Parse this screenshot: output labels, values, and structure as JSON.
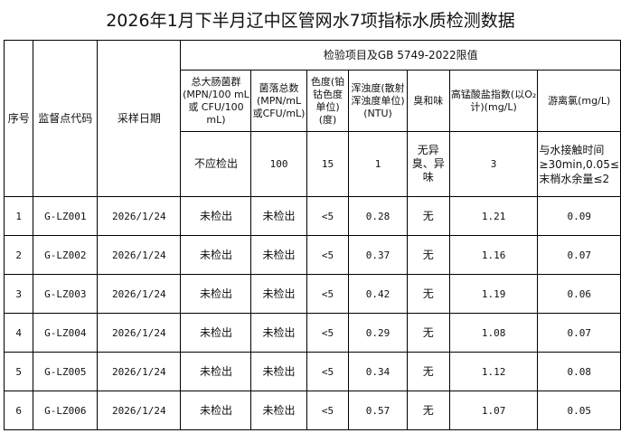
{
  "title": "2026年1月下半月辽中区管网水7项指标水质检测数据",
  "headers": {
    "seq": "序号",
    "code": "监督点代码",
    "date": "采样日期",
    "group": "检验项目及GB 5749-2022限值",
    "items": [
      "总大肠菌群(MPN/100 mL或 CFU/100 mL)",
      "菌落总数(MPN/mL或CFU/mL)",
      "色度(铂钴色度单位)(度)",
      "浑浊度(散射浑浊度单位)(NTU)",
      "臭和味",
      "高锰酸盐指数(以O₂计)(mg/L)",
      "游离氯(mg/L)"
    ]
  },
  "limits": [
    "不应检出",
    "100",
    "15",
    "1",
    "无异臭、异味",
    "3",
    "与水接触时间≥30min,0.05≤末梢水余量≤2"
  ],
  "rows": [
    [
      "1",
      "G-LZ001",
      "2026/1/24",
      "未检出",
      "未检出",
      "<5",
      "0.28",
      "无",
      "1.21",
      "0.09"
    ],
    [
      "2",
      "G-LZ002",
      "2026/1/24",
      "未检出",
      "未检出",
      "<5",
      "0.37",
      "无",
      "1.16",
      "0.07"
    ],
    [
      "3",
      "G-LZ003",
      "2026/1/24",
      "未检出",
      "未检出",
      "<5",
      "0.42",
      "无",
      "1.19",
      "0.06"
    ],
    [
      "4",
      "G-LZ004",
      "2026/1/24",
      "未检出",
      "未检出",
      "<5",
      "0.29",
      "无",
      "1.08",
      "0.07"
    ],
    [
      "5",
      "G-LZ005",
      "2026/1/24",
      "未检出",
      "未检出",
      "<5",
      "0.34",
      "无",
      "1.12",
      "0.08"
    ],
    [
      "6",
      "G-LZ006",
      "2026/1/24",
      "未检出",
      "未检出",
      "<5",
      "0.57",
      "无",
      "1.07",
      "0.05"
    ]
  ]
}
